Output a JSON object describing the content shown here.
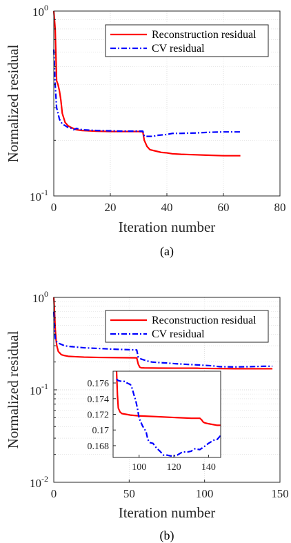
{
  "colors": {
    "recon": "#ff0000",
    "cv": "#0000ff",
    "axis": "#262626",
    "grid": "#d9d9d9"
  },
  "chart_data": [
    {
      "type": "line",
      "caption": "(a)",
      "xlabel": "Iteration number",
      "ylabel": "Normalized residual",
      "yscale": "log",
      "xlim": [
        0,
        80
      ],
      "ylim": [
        0.1,
        1
      ],
      "xticks": [
        0,
        20,
        40,
        60,
        80
      ],
      "yticks": [
        {
          "v": 0.1,
          "base": "10",
          "exp": "-1"
        },
        {
          "v": 1,
          "base": "10",
          "exp": "0"
        }
      ],
      "grid": true,
      "legend": "top-right",
      "series": [
        {
          "name": "Reconstruction residual",
          "color": "recon",
          "style": "solid",
          "x": [
            0,
            0.5,
            1,
            1.5,
            2,
            2.5,
            3,
            4,
            5,
            6,
            8,
            10,
            15,
            20,
            25,
            30,
            31.5,
            32,
            33,
            34,
            36,
            38,
            40,
            42,
            45,
            50,
            55,
            60,
            66
          ],
          "y": [
            1.0,
            0.8,
            0.42,
            0.4,
            0.37,
            0.33,
            0.28,
            0.25,
            0.24,
            0.235,
            0.228,
            0.226,
            0.224,
            0.223,
            0.223,
            0.223,
            0.222,
            0.2,
            0.185,
            0.178,
            0.175,
            0.172,
            0.171,
            0.169,
            0.168,
            0.167,
            0.166,
            0.165,
            0.165
          ]
        },
        {
          "name": "CV residual",
          "color": "cv",
          "style": "dashdot",
          "x": [
            0,
            0.5,
            1,
            1.5,
            2,
            3,
            4,
            5,
            6,
            7,
            8,
            10,
            15,
            20,
            25,
            30,
            31.5,
            32,
            33,
            35,
            37,
            40,
            42,
            45,
            50,
            55,
            60,
            66
          ],
          "y": [
            0.62,
            0.4,
            0.3,
            0.28,
            0.26,
            0.245,
            0.24,
            0.235,
            0.233,
            0.228,
            0.232,
            0.228,
            0.226,
            0.225,
            0.224,
            0.224,
            0.224,
            0.211,
            0.21,
            0.21,
            0.213,
            0.215,
            0.218,
            0.218,
            0.219,
            0.221,
            0.222,
            0.222
          ]
        }
      ]
    },
    {
      "type": "line",
      "caption": "(b)",
      "xlabel": "Iteration number",
      "ylabel": "Normalized residual",
      "yscale": "log",
      "xlim": [
        0,
        150
      ],
      "ylim": [
        0.01,
        1
      ],
      "xticks": [
        0,
        50,
        100,
        150
      ],
      "yticks": [
        {
          "v": 0.01,
          "base": "10",
          "exp": "-2"
        },
        {
          "v": 0.1,
          "base": "10",
          "exp": "-1"
        },
        {
          "v": 1,
          "base": "10",
          "exp": "0"
        }
      ],
      "grid": true,
      "legend": "top-right",
      "series": [
        {
          "name": "Reconstruction residual",
          "color": "recon",
          "style": "solid",
          "x": [
            0,
            0.5,
            1,
            1.5,
            2,
            3,
            4,
            5,
            7,
            10,
            15,
            20,
            30,
            40,
            55,
            56,
            57,
            58,
            60,
            65,
            70,
            80,
            90,
            95,
            96,
            97,
            100,
            110,
            120,
            130,
            140,
            145
          ],
          "y": [
            1.0,
            0.7,
            0.45,
            0.35,
            0.3,
            0.26,
            0.25,
            0.24,
            0.235,
            0.23,
            0.228,
            0.226,
            0.224,
            0.223,
            0.222,
            0.19,
            0.176,
            0.173,
            0.1725,
            0.1722,
            0.1719,
            0.1717,
            0.1716,
            0.1715,
            0.1712,
            0.1708,
            0.1705,
            0.1698,
            0.1692,
            0.1691,
            0.169,
            0.169
          ]
        },
        {
          "name": "CV residual",
          "color": "cv",
          "style": "dashdot",
          "x": [
            0,
            0.5,
            1,
            1.5,
            2,
            3,
            5,
            7,
            10,
            15,
            20,
            30,
            40,
            55,
            56,
            58,
            60,
            62,
            65,
            70,
            75,
            80,
            85,
            90,
            95,
            100,
            105,
            110,
            120,
            130,
            140,
            145
          ],
          "y": [
            0.7,
            0.45,
            0.36,
            0.34,
            0.33,
            0.32,
            0.31,
            0.3,
            0.295,
            0.29,
            0.285,
            0.28,
            0.275,
            0.27,
            0.225,
            0.215,
            0.21,
            0.205,
            0.2,
            0.197,
            0.195,
            0.192,
            0.19,
            0.188,
            0.186,
            0.184,
            0.182,
            0.178,
            0.177,
            0.178,
            0.18,
            0.18
          ]
        }
      ],
      "inset": {
        "xlim": [
          85,
          147
        ],
        "ylim": [
          0.1665,
          0.1775
        ],
        "xticks": [
          100,
          120,
          140
        ],
        "yticks": [
          0.168,
          0.17,
          0.172,
          0.174,
          0.176
        ],
        "series": [
          {
            "color": "recon",
            "style": "solid",
            "x": [
              87,
              87.5,
              88,
              89,
              90,
              95,
              100,
              110,
              120,
              130,
              135,
              136,
              137,
              138,
              140,
              145,
              147
            ],
            "y": [
              0.1775,
              0.1745,
              0.1728,
              0.1723,
              0.1721,
              0.1719,
              0.1718,
              0.1717,
              0.1716,
              0.1715,
              0.1715,
              0.1713,
              0.171,
              0.1709,
              0.1708,
              0.1706,
              0.1706
            ]
          },
          {
            "color": "cv",
            "style": "dashdot",
            "x": [
              87,
              88,
              90,
              92,
              93,
              95,
              96,
              97,
              98,
              99,
              100,
              102,
              104,
              105,
              106,
              108,
              110,
              112,
              114,
              116,
              118,
              120,
              122,
              125,
              128,
              130,
              132,
              135,
              137,
              140,
              143,
              145,
              147
            ],
            "y": [
              0.1765,
              0.1763,
              0.1762,
              0.1762,
              0.176,
              0.1758,
              0.1753,
              0.1745,
              0.1738,
              0.1728,
              0.1715,
              0.1705,
              0.1698,
              0.1688,
              0.1684,
              0.1683,
              0.1677,
              0.1673,
              0.1668,
              0.1668,
              0.1667,
              0.1667,
              0.1668,
              0.1672,
              0.1672,
              0.1673,
              0.1676,
              0.1675,
              0.1678,
              0.1683,
              0.1687,
              0.1688,
              0.1693
            ]
          }
        ]
      }
    }
  ]
}
